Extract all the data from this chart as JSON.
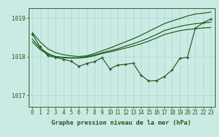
{
  "bg_color": "#cceae4",
  "grid_color": "#b0ddd5",
  "line_color": "#1a5c1a",
  "title": "Graphe pression niveau de la mer (hPa)",
  "ylim": [
    1016.7,
    1019.25
  ],
  "yticks": [
    1017,
    1018,
    1019
  ],
  "xlim": [
    -0.5,
    23.5
  ],
  "xticks": [
    0,
    1,
    2,
    3,
    4,
    5,
    6,
    7,
    8,
    9,
    10,
    11,
    12,
    13,
    14,
    15,
    16,
    17,
    18,
    19,
    20,
    21,
    22,
    23
  ],
  "series": [
    {
      "x": [
        0,
        1,
        2,
        3,
        4,
        5,
        6,
        7,
        8,
        9,
        10,
        11,
        12,
        13,
        14,
        15,
        16,
        17,
        18,
        19,
        20,
        21,
        22,
        23
      ],
      "y": [
        1018.62,
        1018.38,
        1018.2,
        1018.1,
        1018.05,
        1018.02,
        1018.0,
        1018.02,
        1018.08,
        1018.15,
        1018.22,
        1018.3,
        1018.38,
        1018.46,
        1018.55,
        1018.65,
        1018.75,
        1018.85,
        1018.92,
        1018.98,
        1019.05,
        1019.1,
        1019.12,
        1019.15
      ],
      "has_markers": false,
      "lw": 0.9
    },
    {
      "x": [
        0,
        1,
        2,
        3,
        4,
        5,
        6,
        7,
        8,
        9,
        10,
        11,
        12,
        13,
        14,
        15,
        16,
        17,
        18,
        19,
        20,
        21,
        22,
        23
      ],
      "y": [
        1018.45,
        1018.22,
        1018.08,
        1018.0,
        1017.98,
        1017.97,
        1017.97,
        1018.0,
        1018.04,
        1018.1,
        1018.15,
        1018.2,
        1018.27,
        1018.33,
        1018.4,
        1018.48,
        1018.57,
        1018.67,
        1018.73,
        1018.78,
        1018.82,
        1018.85,
        1018.87,
        1018.89
      ],
      "has_markers": false,
      "lw": 0.9
    },
    {
      "x": [
        0,
        1,
        2,
        3,
        4,
        5,
        6,
        7,
        8,
        9,
        10,
        11,
        12,
        13,
        14,
        15,
        16,
        17,
        18,
        19,
        20,
        21,
        22,
        23
      ],
      "y": [
        1018.38,
        1018.18,
        1018.06,
        1018.0,
        1017.97,
        1017.96,
        1017.96,
        1017.98,
        1018.02,
        1018.08,
        1018.12,
        1018.17,
        1018.22,
        1018.27,
        1018.33,
        1018.4,
        1018.48,
        1018.57,
        1018.62,
        1018.67,
        1018.7,
        1018.72,
        1018.74,
        1018.75
      ],
      "has_markers": false,
      "lw": 0.9
    },
    {
      "x": [
        0,
        1,
        2,
        3,
        4,
        5,
        6,
        7,
        8,
        9,
        10,
        11,
        12,
        13,
        14,
        15,
        16,
        17,
        18,
        19,
        20,
        21,
        22,
        23
      ],
      "y": [
        1018.58,
        1018.25,
        1018.02,
        1017.98,
        1017.93,
        1017.88,
        1017.75,
        1017.82,
        1017.87,
        1017.97,
        1017.68,
        1017.78,
        1017.8,
        1017.83,
        1017.52,
        1017.37,
        1017.38,
        1017.48,
        1017.65,
        1017.95,
        1017.98,
        1018.73,
        1018.87,
        1018.97
      ],
      "has_markers": true,
      "lw": 0.9
    }
  ]
}
